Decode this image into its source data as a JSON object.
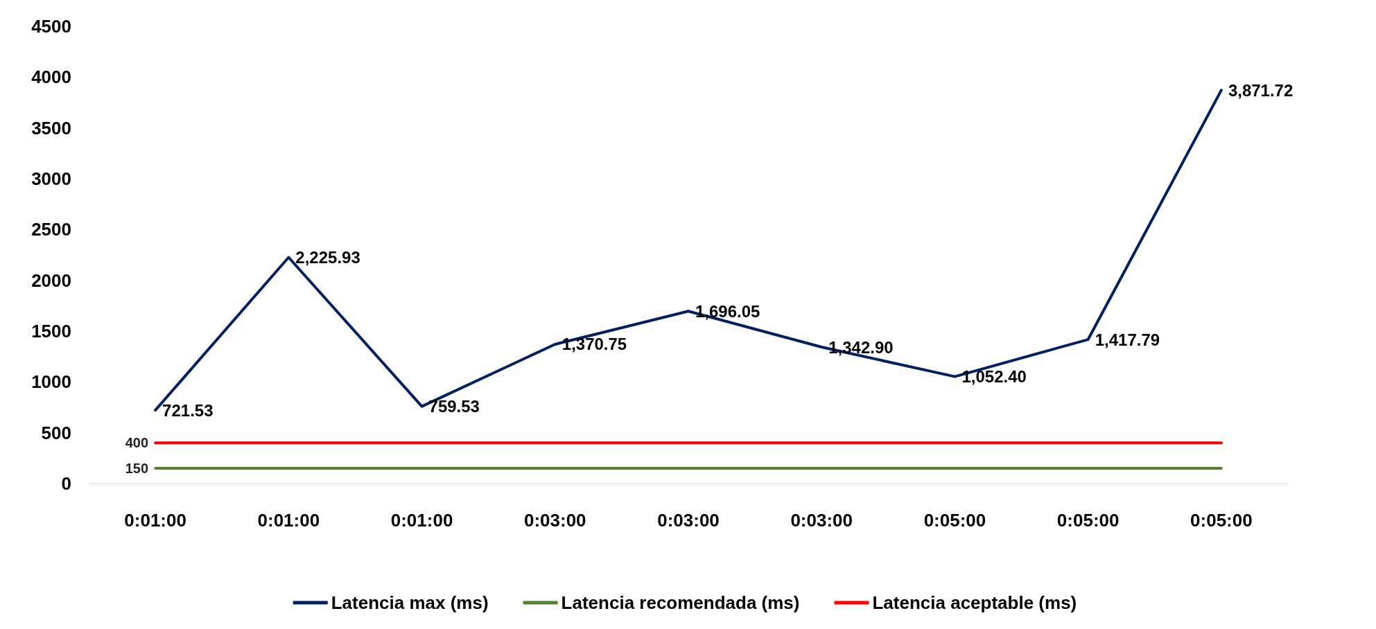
{
  "chart_data": {
    "type": "line",
    "categories": [
      "0:01:00",
      "0:01:00",
      "0:01:00",
      "0:03:00",
      "0:03:00",
      "0:03:00",
      "0:05:00",
      "0:05:00",
      "0:05:00"
    ],
    "series": [
      {
        "name": "Latencia max (ms)",
        "color": "#002060",
        "values": [
          721.53,
          2225.93,
          759.53,
          1370.75,
          1696.05,
          1342.9,
          1052.4,
          1417.79,
          3871.72
        ],
        "value_labels": [
          "721.53",
          "2,225.93",
          "759.53",
          "1,370.75",
          "1,696.05",
          "1,342.90",
          "1,052.40",
          "1,417.79",
          "3,871.72"
        ]
      },
      {
        "name": "Latencia recomendada (ms)",
        "color": "#548235",
        "values": [
          150,
          150,
          150,
          150,
          150,
          150,
          150,
          150,
          150
        ],
        "value_labels": [
          "150",
          null,
          null,
          null,
          null,
          null,
          null,
          null,
          null
        ]
      },
      {
        "name": "Latencia aceptable (ms)",
        "color": "#ff0000",
        "values": [
          400,
          400,
          400,
          400,
          400,
          400,
          400,
          400,
          400
        ],
        "value_labels": [
          "400",
          null,
          null,
          null,
          null,
          null,
          null,
          null,
          null
        ]
      }
    ],
    "ylim": [
      0,
      4500
    ],
    "yticks": [
      0,
      500,
      1000,
      1500,
      2000,
      2500,
      3000,
      3500,
      4000,
      4500
    ],
    "grid": false,
    "legend": "bottom",
    "marker": "none",
    "line_style": "solid"
  }
}
